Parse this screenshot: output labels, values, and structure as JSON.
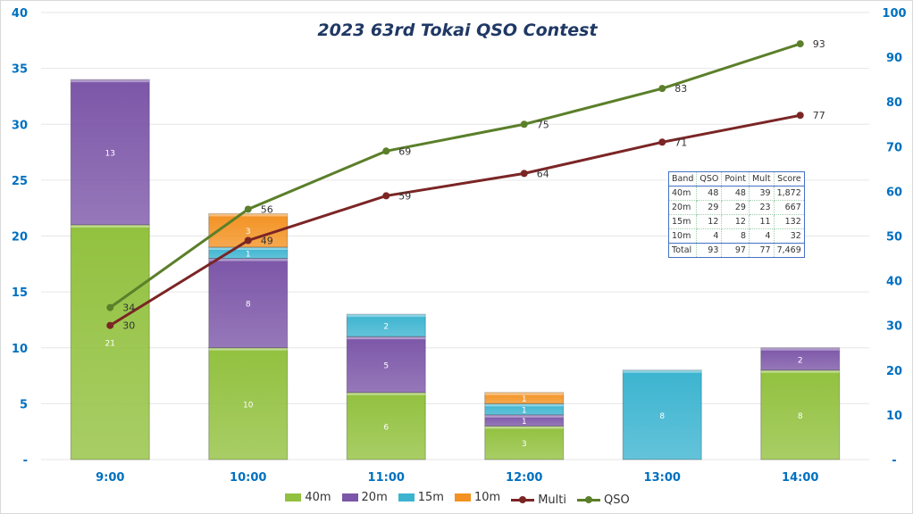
{
  "chart_data": {
    "type": "bar+line",
    "title": "2023 63rd Tokai  QSO Contest",
    "categories": [
      "9:00",
      "10:00",
      "11:00",
      "12:00",
      "13:00",
      "14:00"
    ],
    "ylim": [
      0,
      40
    ],
    "y_ticks": [
      "-",
      "5",
      "10",
      "15",
      "20",
      "25",
      "30",
      "35",
      "40"
    ],
    "y2lim": [
      0,
      100
    ],
    "y2_ticks": [
      "-",
      "10",
      "20",
      "30",
      "40",
      "50",
      "60",
      "70",
      "80",
      "90",
      "100"
    ],
    "series": [
      {
        "name": "40m",
        "type": "bar",
        "color": "#92c13f",
        "values": [
          21,
          10,
          6,
          3,
          0,
          8
        ]
      },
      {
        "name": "20m",
        "type": "bar",
        "color": "#7c56a8",
        "values": [
          13,
          8,
          5,
          1,
          0,
          2
        ]
      },
      {
        "name": "15m",
        "type": "bar",
        "color": "#3cb4d0",
        "values": [
          0,
          1,
          2,
          1,
          8,
          0
        ]
      },
      {
        "name": "10m",
        "type": "bar",
        "color": "#f39222",
        "values": [
          0,
          3,
          0,
          1,
          0,
          0
        ]
      },
      {
        "name": "Multi",
        "type": "line",
        "axis": "right",
        "color": "#7b2525",
        "values": [
          30,
          49,
          59,
          64,
          71,
          77
        ]
      },
      {
        "name": "QSO",
        "type": "line",
        "axis": "right",
        "color": "#5b7f2a",
        "values": [
          34,
          56,
          69,
          75,
          83,
          93
        ]
      }
    ],
    "legend": "bottom"
  },
  "score_table": {
    "header": [
      "Band",
      "QSO",
      "Point",
      "Mult",
      "Score"
    ],
    "rows": [
      [
        "40m",
        "48",
        "48",
        "39",
        "1,872"
      ],
      [
        "20m",
        "29",
        "29",
        "23",
        "667"
      ],
      [
        "15m",
        "12",
        "12",
        "11",
        "132"
      ],
      [
        "10m",
        "4",
        "8",
        "4",
        "32"
      ],
      [
        "Total",
        "93",
        "97",
        "77",
        "7,469"
      ]
    ]
  }
}
